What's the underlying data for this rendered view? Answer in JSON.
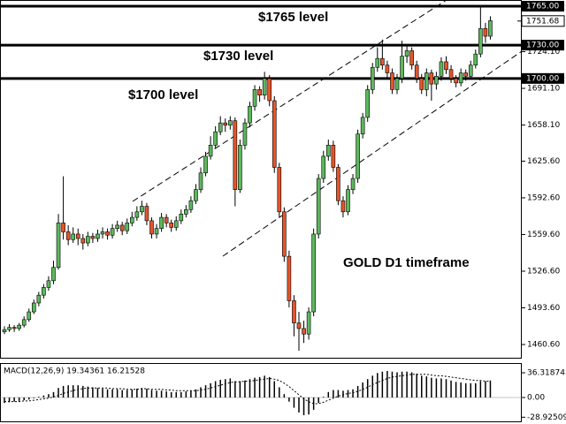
{
  "chart_data": [
    {
      "type": "candlestick",
      "up_color": "#5cb85c",
      "down_color": "#e4552b",
      "ylim": [
        1448.7,
        1770.6
      ],
      "yticks": [
        {
          "value": 1460.6,
          "label": "1460.60"
        },
        {
          "value": 1493.6,
          "label": "1493.60"
        },
        {
          "value": 1526.6,
          "label": "1526.60"
        },
        {
          "value": 1559.6,
          "label": "1559.60"
        },
        {
          "value": 1592.6,
          "label": "1592.60"
        },
        {
          "value": 1625.6,
          "label": "1625.60"
        },
        {
          "value": 1658.1,
          "label": "1658.10"
        },
        {
          "value": 1691.1,
          "label": "1691.10"
        },
        {
          "value": 1724.1,
          "label": "1724.10"
        }
      ],
      "levels": [
        {
          "value": 1765,
          "label": "1765.00"
        },
        {
          "value": 1730,
          "label": "1730.00"
        },
        {
          "value": 1700,
          "label": "1700.00"
        }
      ],
      "current_price": {
        "value": 1751.68,
        "label": "1751.68"
      },
      "annotations": [
        "$1765 level",
        "$1730 level",
        "$1700 level",
        "GOLD D1 timeframe"
      ],
      "ohlc": [
        [
          1472,
          1477,
          1470,
          1474
        ],
        [
          1474,
          1479,
          1472,
          1476
        ],
        [
          1476,
          1478,
          1472,
          1475
        ],
        [
          1475,
          1480,
          1473,
          1478
        ],
        [
          1478,
          1486,
          1476,
          1483
        ],
        [
          1483,
          1493,
          1481,
          1490
        ],
        [
          1490,
          1501,
          1488,
          1498
        ],
        [
          1498,
          1508,
          1495,
          1505
        ],
        [
          1505,
          1515,
          1502,
          1512
        ],
        [
          1512,
          1522,
          1509,
          1518
        ],
        [
          1518,
          1536,
          1515,
          1530
        ],
        [
          1530,
          1578,
          1528,
          1570
        ],
        [
          1570,
          1612,
          1555,
          1562
        ],
        [
          1562,
          1568,
          1550,
          1555
        ],
        [
          1555,
          1566,
          1552,
          1560
        ],
        [
          1560,
          1565,
          1550,
          1556
        ],
        [
          1556,
          1560,
          1546,
          1552
        ],
        [
          1552,
          1562,
          1549,
          1558
        ],
        [
          1558,
          1561,
          1552,
          1556
        ],
        [
          1556,
          1564,
          1553,
          1560
        ],
        [
          1560,
          1566,
          1556,
          1562
        ],
        [
          1562,
          1565,
          1555,
          1559
        ],
        [
          1559,
          1569,
          1556,
          1565
        ],
        [
          1565,
          1572,
          1562,
          1568
        ],
        [
          1568,
          1571,
          1559,
          1563
        ],
        [
          1563,
          1574,
          1560,
          1570
        ],
        [
          1570,
          1580,
          1567,
          1575
        ],
        [
          1575,
          1585,
          1572,
          1580
        ],
        [
          1580,
          1590,
          1577,
          1585
        ],
        [
          1585,
          1588,
          1568,
          1572
        ],
        [
          1572,
          1575,
          1556,
          1560
        ],
        [
          1560,
          1569,
          1556,
          1565
        ],
        [
          1565,
          1579,
          1562,
          1575
        ],
        [
          1575,
          1578,
          1566,
          1570
        ],
        [
          1570,
          1573,
          1562,
          1566
        ],
        [
          1566,
          1576,
          1563,
          1572
        ],
        [
          1572,
          1582,
          1569,
          1578
        ],
        [
          1578,
          1586,
          1575,
          1582
        ],
        [
          1582,
          1594,
          1579,
          1590
        ],
        [
          1590,
          1605,
          1587,
          1600
        ],
        [
          1600,
          1620,
          1597,
          1615
        ],
        [
          1615,
          1634,
          1612,
          1630
        ],
        [
          1630,
          1648,
          1627,
          1640
        ],
        [
          1640,
          1657,
          1637,
          1652
        ],
        [
          1652,
          1666,
          1649,
          1660
        ],
        [
          1660,
          1664,
          1652,
          1658
        ],
        [
          1658,
          1666,
          1654,
          1662
        ],
        [
          1662,
          1665,
          1585,
          1600
        ],
        [
          1600,
          1645,
          1597,
          1640
        ],
        [
          1640,
          1664,
          1636,
          1660
        ],
        [
          1660,
          1679,
          1656,
          1675
        ],
        [
          1675,
          1694,
          1671,
          1690
        ],
        [
          1690,
          1693,
          1679,
          1685
        ],
        [
          1685,
          1706,
          1681,
          1700
        ],
        [
          1700,
          1703,
          1675,
          1680
        ],
        [
          1680,
          1684,
          1615,
          1620
        ],
        [
          1620,
          1624,
          1575,
          1580
        ],
        [
          1580,
          1584,
          1535,
          1540
        ],
        [
          1540,
          1545,
          1494,
          1500
        ],
        [
          1500,
          1505,
          1468,
          1480
        ],
        [
          1480,
          1490,
          1455,
          1475
        ],
        [
          1475,
          1482,
          1462,
          1470
        ],
        [
          1470,
          1494,
          1465,
          1490
        ],
        [
          1490,
          1565,
          1486,
          1560
        ],
        [
          1560,
          1614,
          1556,
          1610
        ],
        [
          1610,
          1635,
          1606,
          1630
        ],
        [
          1630,
          1645,
          1626,
          1640
        ],
        [
          1640,
          1644,
          1616,
          1620
        ],
        [
          1620,
          1623,
          1586,
          1590
        ],
        [
          1590,
          1594,
          1575,
          1580
        ],
        [
          1580,
          1604,
          1577,
          1600
        ],
        [
          1600,
          1614,
          1596,
          1610
        ],
        [
          1610,
          1654,
          1606,
          1650
        ],
        [
          1650,
          1669,
          1646,
          1665
        ],
        [
          1665,
          1694,
          1661,
          1690
        ],
        [
          1690,
          1714,
          1686,
          1710
        ],
        [
          1710,
          1728,
          1706,
          1718
        ],
        [
          1718,
          1735,
          1708,
          1712
        ],
        [
          1712,
          1716,
          1700,
          1705
        ],
        [
          1705,
          1709,
          1686,
          1690
        ],
        [
          1690,
          1704,
          1686,
          1700
        ],
        [
          1700,
          1734,
          1696,
          1720
        ],
        [
          1720,
          1729,
          1714,
          1725
        ],
        [
          1725,
          1728,
          1708,
          1712
        ],
        [
          1712,
          1716,
          1696,
          1700
        ],
        [
          1700,
          1704,
          1686,
          1690
        ],
        [
          1690,
          1709,
          1684,
          1705
        ],
        [
          1705,
          1708,
          1680,
          1695
        ],
        [
          1695,
          1706,
          1690,
          1702
        ],
        [
          1702,
          1719,
          1698,
          1715
        ],
        [
          1715,
          1720,
          1704,
          1708
        ],
        [
          1708,
          1712,
          1696,
          1700
        ],
        [
          1700,
          1703,
          1692,
          1696
        ],
        [
          1696,
          1709,
          1693,
          1705
        ],
        [
          1705,
          1708,
          1698,
          1702
        ],
        [
          1702,
          1716,
          1699,
          1712
        ],
        [
          1712,
          1726,
          1709,
          1722
        ],
        [
          1722,
          1766,
          1719,
          1745
        ],
        [
          1745,
          1750,
          1732,
          1738
        ],
        [
          1738,
          1756,
          1735,
          1752
        ]
      ]
    },
    {
      "type": "macd",
      "title": "MACD(12,26,9) 19.34361 16.21528",
      "ylim": [
        -35,
        49.3
      ],
      "yticks": [
        -28.92509,
        {
          "value": 0,
          "label": "0.00"
        },
        36.31874
      ],
      "histogram": [
        -8,
        -7,
        -6,
        -5,
        -4,
        -3,
        -1,
        1,
        3,
        5,
        8,
        14,
        17,
        18,
        18,
        18,
        17,
        16,
        15,
        14,
        13,
        12,
        12,
        12,
        11,
        11,
        12,
        13,
        14,
        13,
        11,
        10,
        10,
        9,
        8,
        8,
        8,
        9,
        10,
        12,
        15,
        18,
        21,
        24,
        26,
        27,
        28,
        24,
        24,
        25,
        27,
        29,
        30,
        32,
        30,
        24,
        15,
        5,
        -6,
        -15,
        -22,
        -26,
        -25,
        -18,
        -8,
        1,
        8,
        11,
        11,
        10,
        11,
        12,
        17,
        22,
        27,
        32,
        36,
        38,
        39,
        38,
        37,
        38,
        38,
        37,
        35,
        32,
        31,
        29,
        28,
        28,
        27,
        25,
        23,
        22,
        21,
        21,
        21,
        24,
        24,
        25
      ],
      "signal": [
        -6,
        -6,
        -6,
        -6,
        -5,
        -5,
        -4,
        -3,
        -2,
        -1,
        1,
        3,
        6,
        8,
        10,
        12,
        13,
        14,
        14,
        14,
        14,
        14,
        13,
        13,
        13,
        12,
        12,
        12,
        13,
        13,
        12,
        12,
        12,
        11,
        11,
        10,
        10,
        10,
        10,
        10,
        11,
        12,
        14,
        16,
        18,
        20,
        22,
        23,
        23,
        24,
        24,
        25,
        26,
        27,
        28,
        27,
        25,
        21,
        16,
        10,
        4,
        -2,
        -6,
        -9,
        -9,
        -7,
        -4,
        -1,
        2,
        4,
        6,
        7,
        9,
        12,
        15,
        19,
        22,
        25,
        28,
        30,
        31,
        32,
        33,
        34,
        34,
        34,
        34,
        33,
        32,
        32,
        31,
        30,
        29,
        28,
        27,
        26,
        25,
        25,
        24,
        24
      ]
    }
  ]
}
